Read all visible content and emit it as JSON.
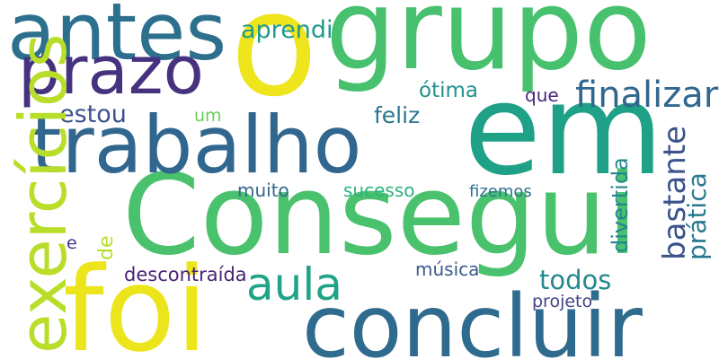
{
  "words": [
    {
      "text": "Consegui",
      "color": "#4ac16d"
    },
    {
      "text": "o",
      "color": "#efe51c"
    },
    {
      "text": "grupo",
      "color": "#48c16e"
    },
    {
      "text": "em",
      "color": "#1fa187"
    },
    {
      "text": "foi",
      "color": "#ede51b"
    },
    {
      "text": "concluir",
      "color": "#2f6b8e"
    },
    {
      "text": "trabalho",
      "color": "#31668e"
    },
    {
      "text": "antes",
      "color": "#2d708e"
    },
    {
      "text": "prazo",
      "color": "#46327e"
    },
    {
      "text": "aula",
      "color": "#20a386"
    },
    {
      "text": "finalizar",
      "color": "#31678e"
    },
    {
      "text": "todos",
      "color": "#23898e"
    },
    {
      "text": "exercícios",
      "color": "#b8de29"
    },
    {
      "text": "bastante",
      "color": "#3b528b"
    },
    {
      "text": "prática",
      "color": "#29798e"
    },
    {
      "text": "divertida",
      "color": "#25858e"
    },
    {
      "text": "aprendi",
      "color": "#1e9b8a"
    },
    {
      "text": "ótima",
      "color": "#21918c"
    },
    {
      "text": "estou",
      "color": "#3b528b"
    },
    {
      "text": "feliz",
      "color": "#2a768e"
    },
    {
      "text": "muito",
      "color": "#31688e"
    },
    {
      "text": "sucesso",
      "color": "#2db27d"
    },
    {
      "text": "fizemos",
      "color": "#2c728e"
    },
    {
      "text": "descontraída",
      "color": "#482475"
    },
    {
      "text": "projeto",
      "color": "#414487"
    },
    {
      "text": "música",
      "color": "#38598c"
    },
    {
      "text": "um",
      "color": "#6ccd5a"
    },
    {
      "text": "que",
      "color": "#482878"
    },
    {
      "text": "e",
      "color": "#46327e"
    },
    {
      "text": "de",
      "color": "#b5de2b"
    }
  ]
}
